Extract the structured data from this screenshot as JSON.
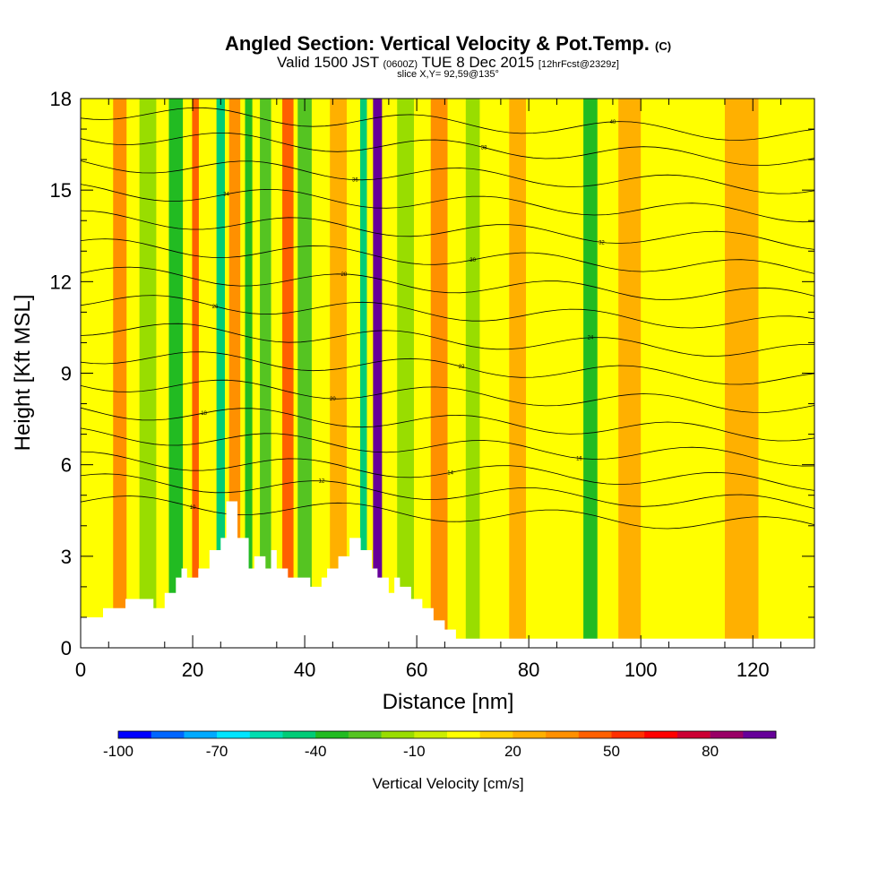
{
  "header": {
    "title": "Angled Section: Vertical Velocity & Pot.Temp.",
    "title_units": "(C)",
    "valid_prefix": "Valid 1500 JST",
    "valid_utc": "(0600Z)",
    "valid_date": "TUE 8 Dec 2015",
    "forecast_info": "[12hrFcst@2329z]",
    "slice_info": "slice X,Y= 92,59@135°"
  },
  "chart_data": {
    "type": "heatmap",
    "xlabel": "Distance [nm]",
    "ylabel": "Height [Kft MSL]",
    "xlim": [
      0,
      131
    ],
    "ylim": [
      0,
      18
    ],
    "x_ticks": [
      0,
      20,
      40,
      60,
      80,
      100,
      120
    ],
    "y_ticks": [
      0,
      3,
      6,
      9,
      12,
      15,
      18
    ],
    "colorbar": {
      "label": "Vertical Velocity [cm/s]",
      "min": -100,
      "max": 100,
      "tick_values": [
        -100,
        -70,
        -40,
        -10,
        20,
        50,
        80
      ],
      "tick_labels": [
        "-100",
        "-70",
        "-40",
        "-10",
        "20",
        "50",
        "80"
      ],
      "colors": [
        "#0000ff",
        "#0066ff",
        "#00aaff",
        "#00e5ff",
        "#00ddb0",
        "#00cc77",
        "#22bb22",
        "#55c422",
        "#99dd00",
        "#ccee00",
        "#ffff00",
        "#ffd000",
        "#ffb000",
        "#ff9000",
        "#ff6000",
        "#ff3000",
        "#ff0000",
        "#cc0033",
        "#990066",
        "#660099"
      ]
    },
    "background_level": 5,
    "velocity_bands": [
      {
        "x": 7,
        "width": 2.4,
        "value": 30
      },
      {
        "x": 12,
        "width": 3,
        "value": -20
      },
      {
        "x": 17,
        "width": 2.5,
        "value": -35
      },
      {
        "x": 20.5,
        "width": 1.2,
        "value": 40
      },
      {
        "x": 25,
        "width": 1.5,
        "value": -45
      },
      {
        "x": 27.5,
        "width": 2,
        "value": 30
      },
      {
        "x": 30,
        "width": 1.3,
        "value": -40
      },
      {
        "x": 33,
        "width": 2,
        "value": -30
      },
      {
        "x": 37,
        "width": 2,
        "value": 40
      },
      {
        "x": 40,
        "width": 2.5,
        "value": -30
      },
      {
        "x": 46,
        "width": 3,
        "value": 20
      },
      {
        "x": 50.5,
        "width": 1.2,
        "value": -45
      },
      {
        "x": 53,
        "width": 1.6,
        "value": 90
      },
      {
        "x": 58,
        "width": 3,
        "value": -15
      },
      {
        "x": 64,
        "width": 3,
        "value": 35
      },
      {
        "x": 70,
        "width": 2.5,
        "value": -15
      },
      {
        "x": 78,
        "width": 3,
        "value": 25
      },
      {
        "x": 91,
        "width": 2.5,
        "value": -35
      },
      {
        "x": 98,
        "width": 4,
        "value": 20
      },
      {
        "x": 118,
        "width": 6,
        "value": 20
      }
    ],
    "terrain": {
      "x": [
        0,
        4,
        4,
        8,
        8,
        13,
        13,
        15,
        15,
        17,
        17,
        18,
        18,
        19,
        19,
        21,
        21,
        23,
        23,
        25,
        25,
        26,
        26,
        28,
        28,
        30,
        30,
        31,
        31,
        33,
        33,
        34,
        34,
        35,
        35,
        37,
        37,
        39,
        39,
        41,
        41,
        43,
        43,
        44,
        44,
        46,
        46,
        48,
        48,
        50,
        50,
        52,
        52,
        53,
        53,
        55,
        55,
        56,
        56,
        57,
        57,
        59,
        59,
        61,
        61,
        63,
        63,
        65,
        65,
        67,
        67,
        71,
        71,
        131
      ],
      "y": [
        1,
        1,
        1.3,
        1.3,
        1.6,
        1.6,
        1.3,
        1.3,
        1.8,
        1.8,
        2.3,
        2.3,
        2.6,
        2.6,
        2.3,
        2.3,
        2.6,
        2.6,
        3.2,
        3.2,
        3.6,
        3.6,
        4.8,
        4.8,
        3.6,
        3.6,
        2.6,
        2.6,
        3.0,
        3.0,
        2.6,
        2.6,
        3.2,
        3.2,
        2.6,
        2.6,
        2.3,
        2.3,
        2.3,
        2.3,
        2.0,
        2.0,
        2.3,
        2.3,
        2.6,
        2.6,
        3.0,
        3.0,
        3.6,
        3.6,
        3.2,
        3.2,
        2.6,
        2.6,
        2.3,
        2.3,
        1.8,
        1.8,
        2.3,
        2.3,
        2.0,
        2.0,
        1.6,
        1.6,
        1.3,
        1.3,
        0.9,
        0.9,
        0.6,
        0.6,
        0.3,
        0.3,
        0.3,
        0.3
      ]
    },
    "contour_levels": [
      {
        "z": 4.6,
        "label": "10"
      },
      {
        "z": 5.3,
        "label": "12"
      },
      {
        "z": 6.0,
        "label": "14"
      },
      {
        "z": 6.8,
        "label": "16"
      },
      {
        "z": 7.6,
        "label": "18"
      },
      {
        "z": 8.5,
        "label": "20"
      },
      {
        "z": 9.4,
        "label": "22"
      },
      {
        "z": 10.3,
        "label": "24"
      },
      {
        "z": 11.2,
        "label": "26"
      },
      {
        "z": 12.1,
        "label": "28"
      },
      {
        "z": 13.0,
        "label": "30"
      },
      {
        "z": 13.9,
        "label": "32"
      },
      {
        "z": 14.8,
        "label": "34"
      },
      {
        "z": 15.7,
        "label": "36"
      },
      {
        "z": 16.6,
        "label": "38"
      },
      {
        "z": 17.4,
        "label": "40"
      }
    ]
  }
}
